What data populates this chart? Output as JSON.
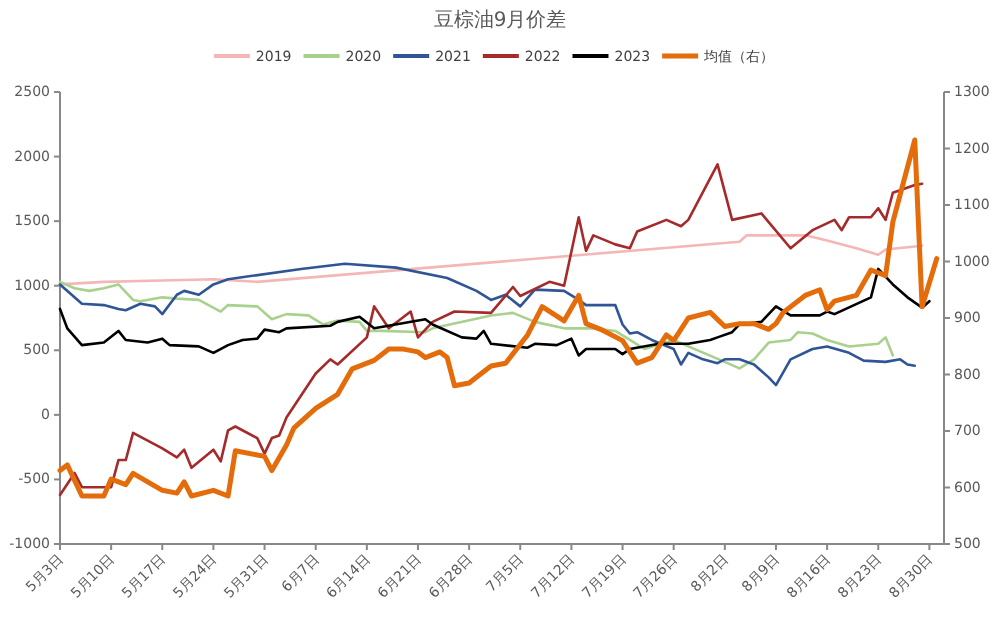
{
  "chart_data": {
    "type": "line",
    "title": "豆棕油9月价差",
    "legend": "top",
    "xlim": [
      "--05-03",
      "--09-01"
    ],
    "xticks": [
      {
        "value": "--05-03",
        "label": "5月3日"
      },
      {
        "value": "--05-10",
        "label": "5月10日"
      },
      {
        "value": "--05-17",
        "label": "5月17日"
      },
      {
        "value": "--05-24",
        "label": "5月24日"
      },
      {
        "value": "--05-31",
        "label": "5月31日"
      },
      {
        "value": "--06-07",
        "label": "6月7日"
      },
      {
        "value": "--06-14",
        "label": "6月14日"
      },
      {
        "value": "--06-21",
        "label": "6月21日"
      },
      {
        "value": "--06-28",
        "label": "6月28日"
      },
      {
        "value": "--07-05",
        "label": "7月5日"
      },
      {
        "value": "--07-12",
        "label": "7月12日"
      },
      {
        "value": "--07-19",
        "label": "7月19日"
      },
      {
        "value": "--07-26",
        "label": "7月26日"
      },
      {
        "value": "--08-02",
        "label": "8月2日"
      },
      {
        "value": "--08-09",
        "label": "8月9日"
      },
      {
        "value": "--08-16",
        "label": "8月16日"
      },
      {
        "value": "--08-23",
        "label": "8月23日"
      },
      {
        "value": "--08-30",
        "label": "8月30日"
      }
    ],
    "ylim": [
      -1000,
      2500
    ],
    "yticks": [
      -1000,
      -500,
      0,
      500,
      1000,
      1500,
      2000,
      2500
    ],
    "y2lim": [
      500,
      1300
    ],
    "y2ticks": [
      500,
      600,
      700,
      800,
      900,
      1000,
      1100,
      1200,
      1300
    ],
    "series": [
      {
        "name": "2019",
        "color": "#f4b6b6",
        "x": [
          "--05-03",
          "--05-09",
          "--05-17",
          "--05-24",
          "--05-30",
          "--08-04",
          "--08-05",
          "--08-13",
          "--08-16",
          "--08-20",
          "--08-23",
          "--08-24",
          "--08-29"
        ],
        "values": [
          1010,
          1030,
          1040,
          1050,
          1030,
          1340,
          1390,
          1390,
          1350,
          1290,
          1240,
          1280,
          1310
        ]
      },
      {
        "name": "2020",
        "color": "#a9d18e",
        "x": [
          "--05-03",
          "--05-05",
          "--05-07",
          "--05-09",
          "--05-11",
          "--05-13",
          "--05-14",
          "--05-17",
          "--05-19",
          "--05-22",
          "--05-25",
          "--05-26",
          "--05-30",
          "--06-01",
          "--06-03",
          "--06-06",
          "--06-08",
          "--06-10",
          "--06-13",
          "--06-14",
          "--06-16",
          "--06-22",
          "--06-23",
          "--07-01",
          "--07-04",
          "--07-07",
          "--07-11",
          "--07-15",
          "--07-18",
          "--07-20",
          "--07-22",
          "--07-26",
          "--07-28",
          "--08-02",
          "--08-04",
          "--08-06",
          "--08-08",
          "--08-11",
          "--08-12",
          "--08-14",
          "--08-16",
          "--08-19",
          "--08-23",
          "--08-24",
          "--08-25"
        ],
        "values": [
          1030,
          980,
          960,
          980,
          1010,
          890,
          880,
          910,
          900,
          890,
          800,
          850,
          840,
          740,
          780,
          770,
          700,
          730,
          720,
          650,
          650,
          640,
          670,
          770,
          790,
          720,
          670,
          670,
          650,
          580,
          510,
          580,
          530,
          410,
          360,
          430,
          560,
          580,
          640,
          630,
          580,
          530,
          550,
          600,
          460
        ]
      },
      {
        "name": "2021",
        "color": "#2f5597",
        "x": [
          "--05-03",
          "--05-06",
          "--05-09",
          "--05-11",
          "--05-12",
          "--05-14",
          "--05-16",
          "--05-17",
          "--05-19",
          "--05-20",
          "--05-22",
          "--05-24",
          "--05-26",
          "--06-05",
          "--06-11",
          "--06-18",
          "--06-25",
          "--06-29",
          "--07-01",
          "--07-03",
          "--07-05",
          "--07-07",
          "--07-11",
          "--07-13",
          "--07-14",
          "--07-18",
          "--07-19",
          "--07-20",
          "--07-21",
          "--07-23",
          "--07-26",
          "--07-27",
          "--07-28",
          "--07-30",
          "--08-01",
          "--08-02",
          "--08-04",
          "--08-06",
          "--08-08",
          "--08-09",
          "--08-11",
          "--08-14",
          "--08-16",
          "--08-19",
          "--08-21",
          "--08-24",
          "--08-26",
          "--08-27",
          "--08-28"
        ],
        "values": [
          1010,
          860,
          850,
          820,
          810,
          860,
          840,
          780,
          930,
          960,
          930,
          1010,
          1050,
          1130,
          1170,
          1140,
          1060,
          960,
          890,
          930,
          840,
          970,
          960,
          890,
          850,
          850,
          700,
          630,
          640,
          580,
          510,
          390,
          480,
          430,
          400,
          430,
          430,
          390,
          290,
          230,
          430,
          510,
          530,
          480,
          420,
          410,
          430,
          390,
          380
        ]
      },
      {
        "name": "2022",
        "color": "#a52a2a",
        "x": [
          "--05-03",
          "--05-05",
          "--05-06",
          "--05-10",
          "--05-11",
          "--05-12",
          "--05-13",
          "--05-17",
          "--05-19",
          "--05-20",
          "--05-21",
          "--05-24",
          "--05-25",
          "--05-26",
          "--05-27",
          "--05-30",
          "--05-31",
          "--06-01",
          "--06-02",
          "--06-03",
          "--06-07",
          "--06-09",
          "--06-10",
          "--06-14",
          "--06-15",
          "--06-17",
          "--06-20",
          "--06-21",
          "--06-23",
          "--06-26",
          "--07-01",
          "--07-04",
          "--07-05",
          "--07-09",
          "--07-11",
          "--07-13",
          "--07-14",
          "--07-15",
          "--07-18",
          "--07-20",
          "--07-21",
          "--07-25",
          "--07-27",
          "--07-28",
          "--08-01",
          "--08-03",
          "--08-07",
          "--08-11",
          "--08-14",
          "--08-17",
          "--08-18",
          "--08-19",
          "--08-22",
          "--08-23",
          "--08-24",
          "--08-25",
          "--08-28",
          "--08-29"
        ],
        "values": [
          -620,
          -450,
          -560,
          -560,
          -350,
          -350,
          -140,
          -260,
          -330,
          -270,
          -410,
          -270,
          -360,
          -120,
          -90,
          -180,
          -300,
          -180,
          -160,
          -20,
          320,
          430,
          390,
          600,
          840,
          670,
          800,
          600,
          720,
          800,
          790,
          990,
          920,
          1030,
          1000,
          1530,
          1270,
          1390,
          1320,
          1290,
          1420,
          1510,
          1460,
          1510,
          1940,
          1510,
          1560,
          1290,
          1430,
          1510,
          1430,
          1530,
          1530,
          1600,
          1510,
          1720,
          1780,
          1790
        ]
      },
      {
        "name": "2023",
        "color": "#000000",
        "x": [
          "--05-03",
          "--05-04",
          "--05-06",
          "--05-09",
          "--05-11",
          "--05-12",
          "--05-15",
          "--05-17",
          "--05-18",
          "--05-22",
          "--05-24",
          "--05-26",
          "--05-28",
          "--05-30",
          "--05-31",
          "--06-02",
          "--06-03",
          "--06-09",
          "--06-10",
          "--06-13",
          "--06-15",
          "--06-22",
          "--06-23",
          "--06-27",
          "--06-29",
          "--06-30",
          "--07-01",
          "--07-06",
          "--07-07",
          "--07-10",
          "--07-12",
          "--07-13",
          "--07-14",
          "--07-18",
          "--07-19",
          "--07-20",
          "--07-24",
          "--07-28",
          "--07-31",
          "--08-01",
          "--08-03",
          "--08-04",
          "--08-07",
          "--08-09",
          "--08-11",
          "--08-15",
          "--08-16",
          "--08-17",
          "--08-22",
          "--08-23",
          "--08-25",
          "--08-27",
          "--08-29",
          "--08-30"
        ],
        "values": [
          820,
          670,
          540,
          560,
          650,
          580,
          560,
          590,
          540,
          530,
          480,
          540,
          580,
          590,
          660,
          640,
          670,
          690,
          720,
          760,
          670,
          740,
          700,
          600,
          590,
          650,
          550,
          520,
          550,
          540,
          590,
          460,
          510,
          510,
          470,
          510,
          550,
          550,
          580,
          600,
          640,
          700,
          720,
          840,
          770,
          770,
          800,
          780,
          910,
          1130,
          1010,
          910,
          830,
          880
        ]
      },
      {
        "name": "均值（右）",
        "color": "#e46c0a",
        "axis": "y2",
        "x": [
          "--05-03",
          "--05-04",
          "--05-06",
          "--05-09",
          "--05-10",
          "--05-11",
          "--05-12",
          "--05-13",
          "--05-17",
          "--05-19",
          "--05-20",
          "--05-21",
          "--05-24",
          "--05-26",
          "--05-27",
          "--05-31",
          "--06-01",
          "--06-03",
          "--06-04",
          "--06-07",
          "--06-10",
          "--06-12",
          "--06-15",
          "--06-16",
          "--06-17",
          "--06-19",
          "--06-21",
          "--06-22",
          "--06-24",
          "--06-25",
          "--06-26",
          "--06-28",
          "--06-29",
          "--07-01",
          "--07-03",
          "--07-06",
          "--07-08",
          "--07-11",
          "--07-13",
          "--07-14",
          "--07-16",
          "--07-19",
          "--07-21",
          "--07-23",
          "--07-25",
          "--07-26",
          "--07-28",
          "--07-31",
          "--08-02",
          "--08-04",
          "--08-06",
          "--08-08",
          "--08-09",
          "--08-10",
          "--08-13",
          "--08-15",
          "--08-16",
          "--08-17",
          "--08-20",
          "--08-22",
          "--08-24",
          "--08-25",
          "--08-28",
          "--08-29",
          "--08-31"
        ],
        "values": [
          630,
          640,
          585,
          585,
          615,
          610,
          605,
          625,
          595,
          590,
          610,
          585,
          595,
          585,
          665,
          655,
          630,
          675,
          705,
          740,
          765,
          810,
          825,
          835,
          845,
          845,
          840,
          830,
          840,
          830,
          780,
          785,
          795,
          815,
          820,
          870,
          920,
          895,
          940,
          890,
          880,
          860,
          820,
          830,
          870,
          860,
          900,
          910,
          885,
          890,
          890,
          880,
          890,
          910,
          940,
          950,
          915,
          930,
          940,
          985,
          975,
          1070,
          1215,
          920,
          1005
        ]
      }
    ]
  }
}
